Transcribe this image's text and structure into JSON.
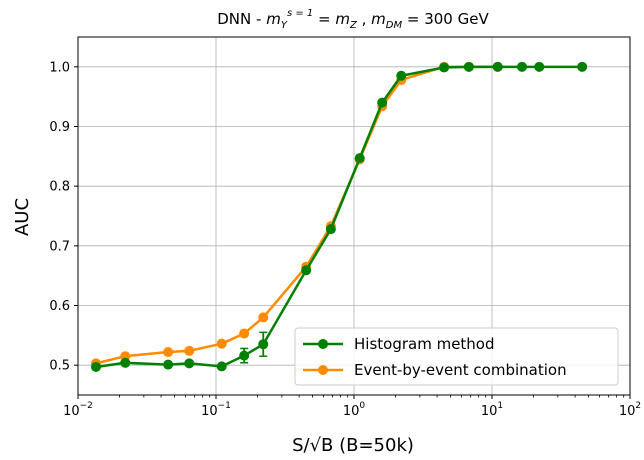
{
  "chart_data": {
    "type": "line",
    "title": {
      "prefix": "DNN - ",
      "m": "m",
      "sub_Y": "Y",
      "sup": "s = 1",
      "eq": " = ",
      "sub_Z": "Z",
      "mid": " , ",
      "sub_DM": "DM",
      "value": " = 300 GeV"
    },
    "xlabel": "S/√B (B=50k)",
    "ylabel": "AUC",
    "xscale": "log",
    "xlim": [
      0.01,
      100
    ],
    "ylim": [
      0.45,
      1.05
    ],
    "grid": true,
    "legend_position": "lower right",
    "x_ticks": [
      {
        "value": 0.01,
        "base": "10",
        "exp": "−2"
      },
      {
        "value": 0.1,
        "base": "10",
        "exp": "−1"
      },
      {
        "value": 1,
        "base": "10",
        "exp": "0"
      },
      {
        "value": 10,
        "base": "10",
        "exp": "1"
      },
      {
        "value": 100,
        "base": "10",
        "exp": "2"
      }
    ],
    "y_ticks": [
      {
        "value": 0.5,
        "label": "0.5"
      },
      {
        "value": 0.6,
        "label": "0.6"
      },
      {
        "value": 0.7,
        "label": "0.7"
      },
      {
        "value": 0.8,
        "label": "0.8"
      },
      {
        "value": 0.9,
        "label": "0.9"
      },
      {
        "value": 1.0,
        "label": "1.0"
      }
    ],
    "series": [
      {
        "name": "Histogram method",
        "color": "#008000",
        "x": [
          0.0135,
          0.022,
          0.045,
          0.064,
          0.11,
          0.16,
          0.22,
          0.45,
          0.68,
          1.1,
          1.6,
          2.2,
          4.5,
          6.8,
          11,
          16.5,
          22,
          45
        ],
        "y": [
          0.497,
          0.504,
          0.501,
          0.503,
          0.498,
          0.516,
          0.535,
          0.659,
          0.728,
          0.847,
          0.94,
          0.985,
          0.999,
          1.0,
          1.0,
          1.0,
          1.0,
          1.0
        ],
        "yerr": [
          0.004,
          0.003,
          0.002,
          0.002,
          0.003,
          0.012,
          0.02,
          0.004,
          0.004,
          0.003,
          0.002,
          0.001,
          0.0,
          0.0,
          0.0,
          0.0,
          0.0,
          0.0
        ]
      },
      {
        "name": "Event-by-event combination",
        "color": "#ff8c00",
        "x": [
          0.0135,
          0.022,
          0.045,
          0.064,
          0.11,
          0.16,
          0.22,
          0.45,
          0.68,
          1.1,
          1.6,
          2.2,
          4.5,
          6.8,
          11
        ],
        "y": [
          0.503,
          0.515,
          0.522,
          0.524,
          0.536,
          0.553,
          0.58,
          0.665,
          0.733,
          0.845,
          0.934,
          0.978,
          1.0,
          1.0,
          1.0
        ],
        "yerr": []
      }
    ]
  }
}
